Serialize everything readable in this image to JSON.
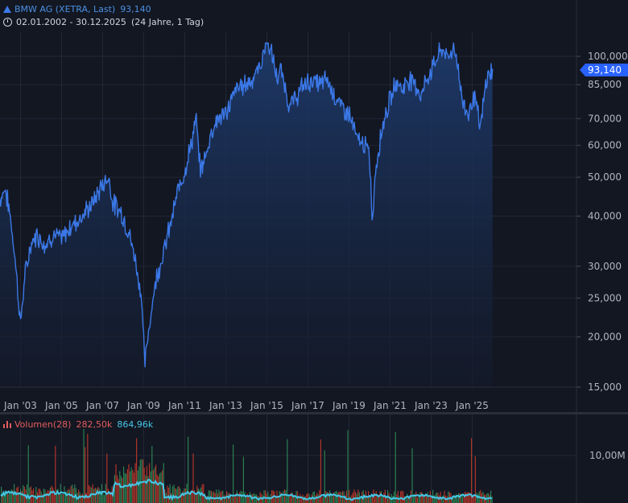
{
  "legend": {
    "symbol_name": "BMW AG (XETRA, Last)",
    "last_value": "93,140",
    "range": "02.01.2002 - 30.12.2025",
    "range_note": "(24 Jahre, 1 Tag)",
    "volume_label": "Volumen(28)",
    "volume_value": "282,50k",
    "volume_ma_value": "864,96k"
  },
  "price_badge": "93,140",
  "colors": {
    "background": "#131722",
    "price_line": "#3b78e7",
    "area_top": "#1e3a6b",
    "volume_up": "#2e8b57",
    "volume_down": "#c0392b",
    "volume_ma": "#46c7e8",
    "badge": "#2962ff"
  },
  "chart_data": [
    {
      "type": "area",
      "title": "BMW AG (XETRA, Last)",
      "scale": "log",
      "x_ticks": [
        "Jan '03",
        "Jan '05",
        "Jan '07",
        "Jan '09",
        "Jan '11",
        "Jan '13",
        "Jan '15",
        "Jan '17",
        "Jan '19",
        "Jan '21",
        "Jan '23",
        "Jan '25"
      ],
      "y_ticks": [
        {
          "value": 100000,
          "label": "100,000"
        },
        {
          "value": 85000,
          "label": "85,000"
        },
        {
          "value": 70000,
          "label": "70,000"
        },
        {
          "value": 60000,
          "label": "60,000"
        },
        {
          "value": 50000,
          "label": "50,000"
        },
        {
          "value": 40000,
          "label": "40,000"
        },
        {
          "value": 30000,
          "label": "30,000"
        },
        {
          "value": 25000,
          "label": "25,000"
        },
        {
          "value": 20000,
          "label": "20,000"
        },
        {
          "value": 15000,
          "label": "15,000"
        }
      ],
      "series": [
        {
          "x": [
            2002.0,
            2002.25,
            2002.5,
            2002.75,
            2003.0,
            2003.2,
            2003.5,
            2003.8,
            2004.2,
            2004.6,
            2005.0,
            2005.5,
            2006.0,
            2006.5,
            2006.8,
            2007.0,
            2007.3,
            2007.5,
            2007.9,
            2008.3,
            2008.6,
            2008.9,
            2009.05,
            2009.3,
            2009.6,
            2010.0,
            2010.4,
            2010.7,
            2011.0,
            2011.3,
            2011.55,
            2011.75,
            2012.0,
            2012.3,
            2012.6,
            2013.0,
            2013.5,
            2013.9,
            2014.3,
            2014.7,
            2015.0,
            2015.25,
            2015.5,
            2015.7,
            2016.1,
            2016.5,
            2016.8,
            2017.2,
            2017.6,
            2017.9,
            2018.3,
            2018.6,
            2019.0,
            2019.4,
            2019.8,
            2020.0,
            2020.15,
            2020.25,
            2020.5,
            2020.8,
            2021.1,
            2021.3,
            2021.6,
            2021.9,
            2022.2,
            2022.5,
            2022.8,
            2023.0,
            2023.3,
            2023.6,
            2023.8,
            2024.1,
            2024.3,
            2024.5,
            2024.8,
            2025.1,
            2025.4,
            2025.7,
            2025.99
          ],
          "y": [
            44,
            47,
            40,
            31,
            21.5,
            28,
            34,
            36,
            34,
            36,
            35,
            38,
            40,
            43,
            46,
            48,
            50,
            43,
            41,
            36,
            31,
            25,
            17,
            22,
            28,
            33,
            40,
            47,
            52,
            60,
            70,
            52,
            56,
            65,
            70,
            72,
            83,
            85,
            88,
            95,
            112,
            100,
            88,
            92,
            75,
            80,
            85,
            87,
            85,
            88,
            80,
            75,
            72,
            62,
            60,
            56,
            38,
            50,
            62,
            73,
            80,
            87,
            83,
            88,
            86,
            80,
            88,
            92,
            100,
            105,
            98,
            107,
            95,
            78,
            72,
            80,
            66,
            88,
            93.14
          ]
        }
      ]
    },
    {
      "type": "bar",
      "title": "Volumen(28)",
      "y_ticks": [
        {
          "value": 10000000,
          "label": "10,00M"
        }
      ]
    }
  ]
}
